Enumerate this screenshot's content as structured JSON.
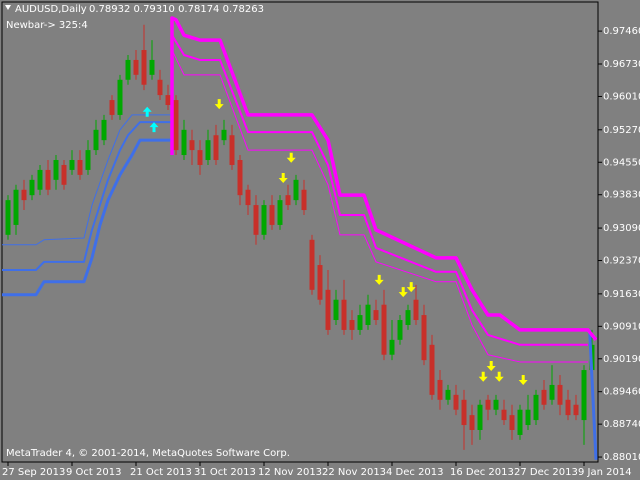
{
  "chart_data": {
    "type": "candlestick",
    "symbol": "AUDUSD,Daily",
    "header_prices": "0.78932 0.79310 0.78174 0.78263",
    "status": "Newbar-> 325:4",
    "footer": "MetaTrader 4, © 2001-2014, MetaQuotes Software Corp.",
    "up_color": "#00a800",
    "down_color": "#c8302a",
    "xlim": [
      -0.75,
      73.75
    ],
    "xticks": [
      {
        "value": 0,
        "label": "27 Sep 2013"
      },
      {
        "value": 8,
        "label": "9 Oct 2013"
      },
      {
        "value": 16,
        "label": "21 Oct 2013"
      },
      {
        "value": 24,
        "label": "31 Oct 2013"
      },
      {
        "value": 32,
        "label": "12 Nov 2013"
      },
      {
        "value": 40,
        "label": "22 Nov 2013"
      },
      {
        "value": 48,
        "label": "4 Dec 2013"
      },
      {
        "value": 56,
        "label": "16 Dec 2013"
      },
      {
        "value": 64,
        "label": "27 Dec 2013"
      },
      {
        "value": 72,
        "label": "9 Jan 2014"
      }
    ],
    "ylim": [
      0.879,
      0.9815
    ],
    "yticks": [
      {
        "value": 0.9746,
        "label": "0.97460"
      },
      {
        "value": 0.9673,
        "label": "0.96730"
      },
      {
        "value": 0.9601,
        "label": "0.96010"
      },
      {
        "value": 0.9527,
        "label": "0.95270"
      },
      {
        "value": 0.9455,
        "label": "0.94550"
      },
      {
        "value": 0.9383,
        "label": "0.93830"
      },
      {
        "value": 0.9309,
        "label": "0.93090"
      },
      {
        "value": 0.9237,
        "label": "0.92370"
      },
      {
        "value": 0.9163,
        "label": "0.91630"
      },
      {
        "value": 0.9091,
        "label": "0.90910"
      },
      {
        "value": 0.9019,
        "label": "0.90190"
      },
      {
        "value": 0.8946,
        "label": "0.89460"
      },
      {
        "value": 0.8874,
        "label": "0.88740"
      },
      {
        "value": 0.8801,
        "label": "0.88010"
      }
    ],
    "ohlc": [
      [
        0.9294,
        0.9382,
        0.9283,
        0.9371
      ],
      [
        0.9316,
        0.9405,
        0.9294,
        0.9394
      ],
      [
        0.9394,
        0.9416,
        0.9349,
        0.9371
      ],
      [
        0.9382,
        0.9427,
        0.9371,
        0.9416
      ],
      [
        0.9394,
        0.9449,
        0.9382,
        0.9438
      ],
      [
        0.9438,
        0.946,
        0.9382,
        0.9394
      ],
      [
        0.9416,
        0.9471,
        0.9394,
        0.946
      ],
      [
        0.9449,
        0.946,
        0.9394,
        0.9405
      ],
      [
        0.9438,
        0.9482,
        0.9427,
        0.946
      ],
      [
        0.946,
        0.9482,
        0.9416,
        0.9427
      ],
      [
        0.9438,
        0.9504,
        0.9427,
        0.9482
      ],
      [
        0.9482,
        0.9549,
        0.9471,
        0.9527
      ],
      [
        0.9504,
        0.956,
        0.9493,
        0.9549
      ],
      [
        0.9593,
        0.9604,
        0.9549,
        0.956
      ],
      [
        0.956,
        0.9649,
        0.9549,
        0.9638
      ],
      [
        0.9638,
        0.9693,
        0.9627,
        0.9682
      ],
      [
        0.9682,
        0.9704,
        0.9638,
        0.9649
      ],
      [
        0.9704,
        0.976,
        0.9615,
        0.9627
      ],
      [
        0.9649,
        0.9726,
        0.9638,
        0.9682
      ],
      [
        0.9638,
        0.966,
        0.9593,
        0.9604
      ],
      [
        0.9604,
        0.9627,
        0.9571,
        0.9582
      ],
      [
        0.9593,
        0.9604,
        0.9471,
        0.9482
      ],
      [
        0.9471,
        0.9549,
        0.946,
        0.9527
      ],
      [
        0.9504,
        0.9527,
        0.9449,
        0.9482
      ],
      [
        0.9482,
        0.9504,
        0.9427,
        0.9449
      ],
      [
        0.946,
        0.9527,
        0.9449,
        0.9504
      ],
      [
        0.9515,
        0.9538,
        0.9449,
        0.946
      ],
      [
        0.9504,
        0.9549,
        0.9493,
        0.9527
      ],
      [
        0.9515,
        0.9538,
        0.9438,
        0.9449
      ],
      [
        0.946,
        0.9471,
        0.936,
        0.9382
      ],
      [
        0.9394,
        0.9405,
        0.9338,
        0.936
      ],
      [
        0.936,
        0.9382,
        0.9272,
        0.9294
      ],
      [
        0.9294,
        0.9371,
        0.9283,
        0.936
      ],
      [
        0.936,
        0.9382,
        0.9305,
        0.9316
      ],
      [
        0.9316,
        0.9382,
        0.9305,
        0.9371
      ],
      [
        0.9382,
        0.9405,
        0.9349,
        0.936
      ],
      [
        0.9371,
        0.9427,
        0.936,
        0.9416
      ],
      [
        0.9394,
        0.9416,
        0.9338,
        0.9349
      ],
      [
        0.9283,
        0.9294,
        0.9161,
        0.9172
      ],
      [
        0.9227,
        0.9249,
        0.9139,
        0.915
      ],
      [
        0.9172,
        0.9216,
        0.9072,
        0.9083
      ],
      [
        0.9105,
        0.9172,
        0.9094,
        0.915
      ],
      [
        0.915,
        0.9194,
        0.9072,
        0.9083
      ],
      [
        0.9105,
        0.9127,
        0.9061,
        0.9083
      ],
      [
        0.9083,
        0.9139,
        0.9072,
        0.9116
      ],
      [
        0.9094,
        0.9161,
        0.9083,
        0.9139
      ],
      [
        0.9127,
        0.915,
        0.9094,
        0.9105
      ],
      [
        0.9139,
        0.9172,
        0.9016,
        0.9028
      ],
      [
        0.9028,
        0.9105,
        0.9016,
        0.9061
      ],
      [
        0.9061,
        0.9116,
        0.905,
        0.9105
      ],
      [
        0.9094,
        0.9139,
        0.9083,
        0.9127
      ],
      [
        0.915,
        0.9183,
        0.9094,
        0.9105
      ],
      [
        0.9116,
        0.9139,
        0.9005,
        0.9016
      ],
      [
        0.905,
        0.9072,
        0.8928,
        0.8939
      ],
      [
        0.8972,
        0.8994,
        0.8906,
        0.8928
      ],
      [
        0.8928,
        0.8961,
        0.8917,
        0.895
      ],
      [
        0.8939,
        0.8961,
        0.8894,
        0.8906
      ],
      [
        0.8928,
        0.895,
        0.8817,
        0.8872
      ],
      [
        0.8894,
        0.8917,
        0.8828,
        0.8861
      ],
      [
        0.8861,
        0.8928,
        0.8839,
        0.8917
      ],
      [
        0.8928,
        0.8939,
        0.8883,
        0.8906
      ],
      [
        0.8906,
        0.8939,
        0.8894,
        0.8928
      ],
      [
        0.8906,
        0.8928,
        0.8872,
        0.8883
      ],
      [
        0.8894,
        0.8917,
        0.8839,
        0.8861
      ],
      [
        0.885,
        0.8917,
        0.8839,
        0.8906
      ],
      [
        0.8872,
        0.8939,
        0.8861,
        0.8906
      ],
      [
        0.8883,
        0.895,
        0.8872,
        0.8939
      ],
      [
        0.895,
        0.8972,
        0.8906,
        0.8917
      ],
      [
        0.8928,
        0.9005,
        0.8917,
        0.8961
      ],
      [
        0.8961,
        0.8983,
        0.8894,
        0.8917
      ],
      [
        0.8928,
        0.895,
        0.8883,
        0.8894
      ],
      [
        0.8917,
        0.8939,
        0.8883,
        0.8894
      ],
      [
        0.8883,
        0.9005,
        0.8828,
        0.8994
      ],
      [
        0.8994,
        0.9083,
        0.8972,
        0.905
      ]
    ],
    "lines": [
      {
        "color": "#3f6fe8",
        "width": 3,
        "x": [
          -0.75,
          3.5,
          4.5,
          9.5,
          10.5,
          11.5,
          12.5,
          14,
          15.5,
          16.5,
          20.5,
          21,
          72.7,
          73.5
        ],
        "values": [
          0.9161,
          0.9161,
          0.919,
          0.919,
          0.9243,
          0.9316,
          0.9371,
          0.9427,
          0.9471,
          0.9504,
          0.9504,
          null,
          0.9083,
          0.8795
        ]
      },
      {
        "color": "#3f6fe8",
        "width": 2,
        "x": [
          -0.75,
          3.5,
          4.5,
          9.5,
          10.5,
          12.5,
          14,
          15,
          16.5,
          20.5
        ],
        "values": [
          0.9216,
          0.9216,
          0.9234,
          0.9234,
          0.9305,
          0.9416,
          0.9482,
          0.9515,
          0.9544,
          0.9544
        ]
      },
      {
        "color": "#3f6fe8",
        "width": 1,
        "x": [
          -0.75,
          3.5,
          4.5,
          9.5,
          10.5,
          12.5,
          14,
          15.5,
          20.5
        ],
        "values": [
          0.9272,
          0.9272,
          0.9283,
          0.9287,
          0.936,
          0.946,
          0.9527,
          0.956,
          0.956
        ]
      },
      {
        "color": "#ff00ff",
        "width": 3.5,
        "x": [
          20.5,
          20.5,
          21,
          22,
          24,
          26.5,
          30,
          38,
          40,
          41.5,
          44.5,
          46,
          53.5,
          56,
          58,
          60,
          61.5,
          64,
          72.5,
          73.5
        ],
        "values": [
          0.9471,
          0.9775,
          0.9771,
          0.9737,
          0.9726,
          0.9726,
          0.956,
          0.956,
          0.9504,
          0.9382,
          0.9382,
          0.9305,
          0.9243,
          0.9243,
          0.9172,
          0.9116,
          0.9116,
          0.9083,
          0.9083,
          0.9061
        ]
      },
      {
        "color": "#ff00ff",
        "width": 2,
        "x": [
          20.5,
          20.5,
          22,
          24,
          26.5,
          30,
          38,
          40,
          41.5,
          44.5,
          46,
          53.5,
          56,
          58,
          60,
          64,
          72.5
        ],
        "values": [
          0.9471,
          0.9737,
          0.9693,
          0.9682,
          0.9682,
          0.9522,
          0.9522,
          0.9449,
          0.9338,
          0.9338,
          0.9265,
          0.9212,
          0.9212,
          0.9127,
          0.9072,
          0.905,
          0.905
        ]
      },
      {
        "color": "#ff00ff",
        "width": 1,
        "x": [
          20.5,
          20.5,
          22,
          26.5,
          30,
          38,
          40,
          41.5,
          44.5,
          46,
          53.5,
          56,
          58,
          60,
          64,
          72.5
        ],
        "values": [
          0.9471,
          0.9704,
          0.9649,
          0.9649,
          0.9482,
          0.9482,
          0.9405,
          0.9294,
          0.9294,
          0.9234,
          0.919,
          0.919,
          0.9094,
          0.9028,
          0.9012,
          0.9012
        ]
      }
    ],
    "up_arrows": {
      "color": "#00ffff",
      "x": [
        17.4,
        18.25
      ],
      "values": [
        0.9567,
        0.9533
      ]
    },
    "down_arrows": {
      "color": "#ffff00",
      "x": [
        26.4,
        35.4,
        34.4,
        46.4,
        49.4,
        50.4,
        60.4,
        59.4,
        61.4,
        64.4
      ],
      "values": [
        0.9584,
        0.9465,
        0.942,
        0.9194,
        0.9167,
        0.9178,
        0.9003,
        0.8979,
        0.8979,
        0.8972
      ]
    }
  }
}
